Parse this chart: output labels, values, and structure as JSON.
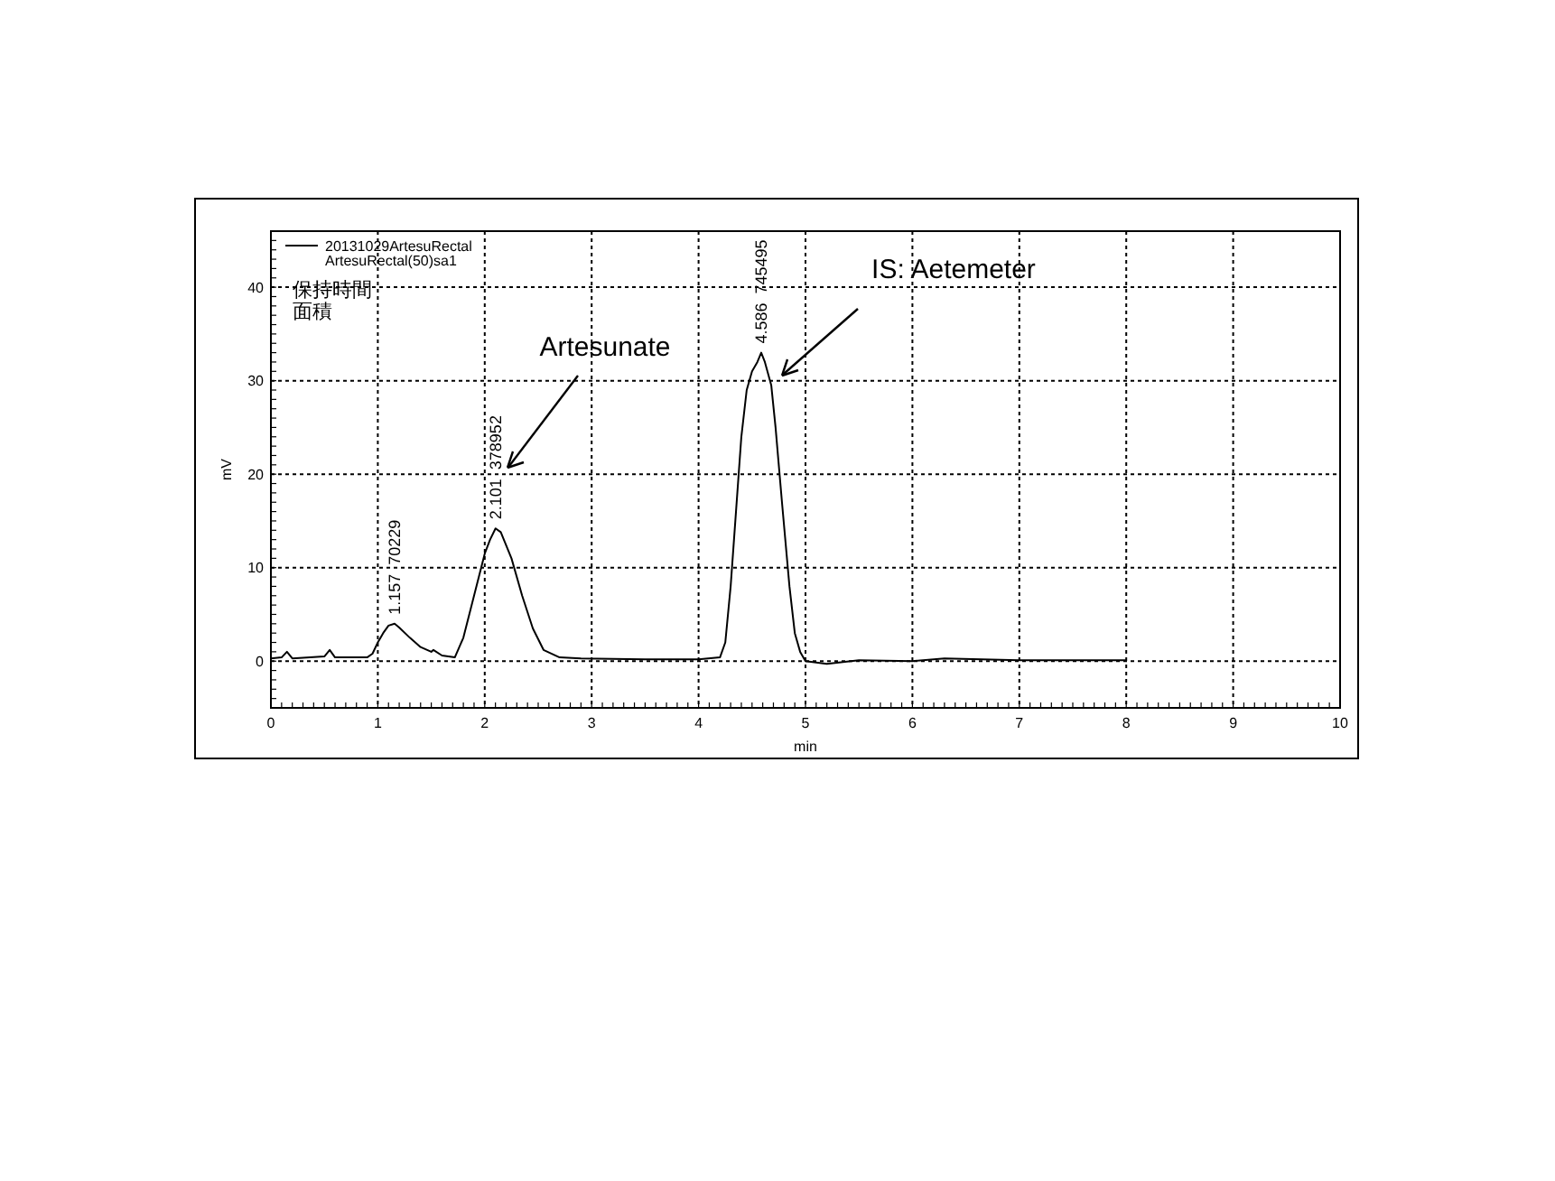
{
  "chart_data": {
    "type": "line",
    "xlabel": "min",
    "ylabel": "mV",
    "xlim": [
      0,
      10
    ],
    "ylim": [
      -5,
      46
    ],
    "xticks": [
      0,
      1,
      2,
      3,
      4,
      5,
      6,
      7,
      8,
      9,
      10
    ],
    "yticks": [
      0,
      10,
      20,
      30,
      40
    ],
    "grid": true,
    "legend": "top left",
    "marker": "none",
    "line_style": "solid",
    "series": [
      {
        "name": "20131029ArtesuRectal ArtesuRectal(50)sa1",
        "color": "#000000",
        "x": [
          0,
          0.1,
          0.15,
          0.2,
          0.5,
          0.55,
          0.6,
          0.9,
          0.95,
          1.0,
          1.05,
          1.1,
          1.157,
          1.2,
          1.3,
          1.4,
          1.5,
          1.52,
          1.6,
          1.72,
          1.8,
          1.9,
          2.0,
          2.05,
          2.101,
          2.15,
          2.25,
          2.35,
          2.45,
          2.55,
          2.7,
          2.9,
          3.5,
          4.0,
          4.2,
          4.25,
          4.3,
          4.35,
          4.4,
          4.45,
          4.5,
          4.55,
          4.586,
          4.62,
          4.68,
          4.72,
          4.78,
          4.85,
          4.9,
          4.95,
          5.0,
          5.2,
          5.5,
          6.0,
          6.3,
          7.0,
          8.0
        ],
        "values": [
          0.3,
          0.4,
          1.0,
          0.3,
          0.5,
          1.2,
          0.4,
          0.4,
          0.8,
          2.0,
          3.0,
          3.8,
          4.0,
          3.6,
          2.5,
          1.5,
          1.0,
          1.2,
          0.6,
          0.4,
          2.5,
          7,
          11.5,
          13,
          14.2,
          13.8,
          11,
          7,
          3.5,
          1.2,
          0.4,
          0.3,
          0.2,
          0.2,
          0.4,
          2,
          8,
          16,
          24,
          29,
          31,
          32,
          33,
          32,
          29.5,
          25,
          17,
          8,
          3,
          1,
          0,
          -0.3,
          0.1,
          0,
          0.3,
          0.1,
          0.1
        ]
      }
    ],
    "annotations": [
      "保持時間",
      "面積",
      "Artesunate",
      "IS: Aetemeter",
      {
        "text": "1.157  70229",
        "x": 1.157,
        "y": 4.0
      },
      {
        "text": "2.101  378952",
        "x": 2.101,
        "y": 14.2
      },
      {
        "text": "4.586  745495",
        "x": 4.586,
        "y": 33
      }
    ]
  }
}
